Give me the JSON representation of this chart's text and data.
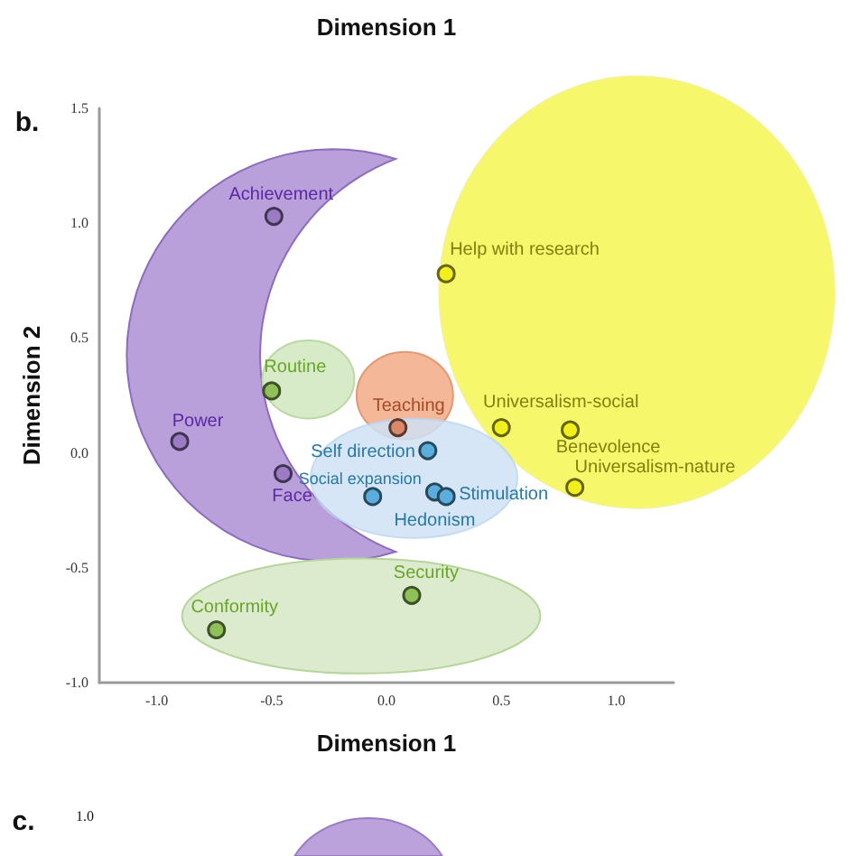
{
  "chart_data": {
    "type": "scatter",
    "xlabel": "Dimension 1",
    "ylabel": "Dimension 2",
    "xlim": [
      -1.25,
      1.25
    ],
    "ylim": [
      -1.0,
      1.5
    ],
    "xticks": [
      {
        "value": -1,
        "label": "-1.0"
      },
      {
        "value": -0.5,
        "label": "-0.5"
      },
      {
        "value": 0,
        "label": "0.0"
      },
      {
        "value": 0.5,
        "label": "0.5"
      },
      {
        "value": 1,
        "label": "1.0"
      }
    ],
    "yticks": [
      {
        "value": -1,
        "label": "-1.0"
      },
      {
        "value": -0.5,
        "label": "-0.5"
      },
      {
        "value": 0,
        "label": "0.0"
      },
      {
        "value": 0.5,
        "label": "0.5"
      },
      {
        "value": 1,
        "label": "1.0"
      },
      {
        "value": 1.5,
        "label": "1.5"
      }
    ],
    "marker": "circle",
    "annotations": [
      "Dimension 1",
      "b.",
      "c.",
      "1.0"
    ],
    "series": [
      {
        "name": "Achievement",
        "color": "#9a7bc4",
        "x": [
          -0.49
        ],
        "values": [
          1.03
        ]
      },
      {
        "name": "Power",
        "color": "#9a7bc4",
        "x": [
          -0.9
        ],
        "values": [
          0.05
        ]
      },
      {
        "name": "Face",
        "color": "#9a7bc4",
        "x": [
          -0.45
        ],
        "values": [
          -0.09
        ]
      },
      {
        "name": "Routine",
        "color": "#8fc05a",
        "x": [
          -0.5
        ],
        "values": [
          0.27
        ]
      },
      {
        "name": "Security",
        "color": "#8fc05a",
        "x": [
          0.11
        ],
        "values": [
          -0.62
        ]
      },
      {
        "name": "Conformity",
        "color": "#8fc05a",
        "x": [
          -0.74
        ],
        "values": [
          -0.77
        ]
      },
      {
        "name": "Teaching",
        "color": "#d9896a",
        "x": [
          0.05
        ],
        "values": [
          0.11
        ]
      },
      {
        "name": "Self direction",
        "color": "#5aaddc",
        "x": [
          0.18
        ],
        "values": [
          0.01
        ]
      },
      {
        "name": "Social expansion",
        "color": "#5aaddc",
        "x": [
          -0.06
        ],
        "values": [
          -0.19
        ]
      },
      {
        "name": "Hedonism",
        "color": "#5aaddc",
        "x": [
          0.21
        ],
        "values": [
          -0.17
        ]
      },
      {
        "name": "Stimulation",
        "color": "#5aaddc",
        "x": [
          0.26
        ],
        "values": [
          -0.19
        ]
      },
      {
        "name": "Help with research",
        "color": "#f2f01c",
        "x": [
          0.26
        ],
        "values": [
          0.78
        ]
      },
      {
        "name": "Universalism-social",
        "color": "#f2f01c",
        "x": [
          0.5
        ],
        "values": [
          0.11
        ]
      },
      {
        "name": "Benevolence",
        "color": "#f2f01c",
        "x": [
          0.8
        ],
        "values": [
          0.1
        ]
      },
      {
        "name": "Universalism-nature",
        "color": "#f2f01c",
        "x": [
          0.82
        ],
        "values": [
          -0.15
        ]
      }
    ]
  }
}
